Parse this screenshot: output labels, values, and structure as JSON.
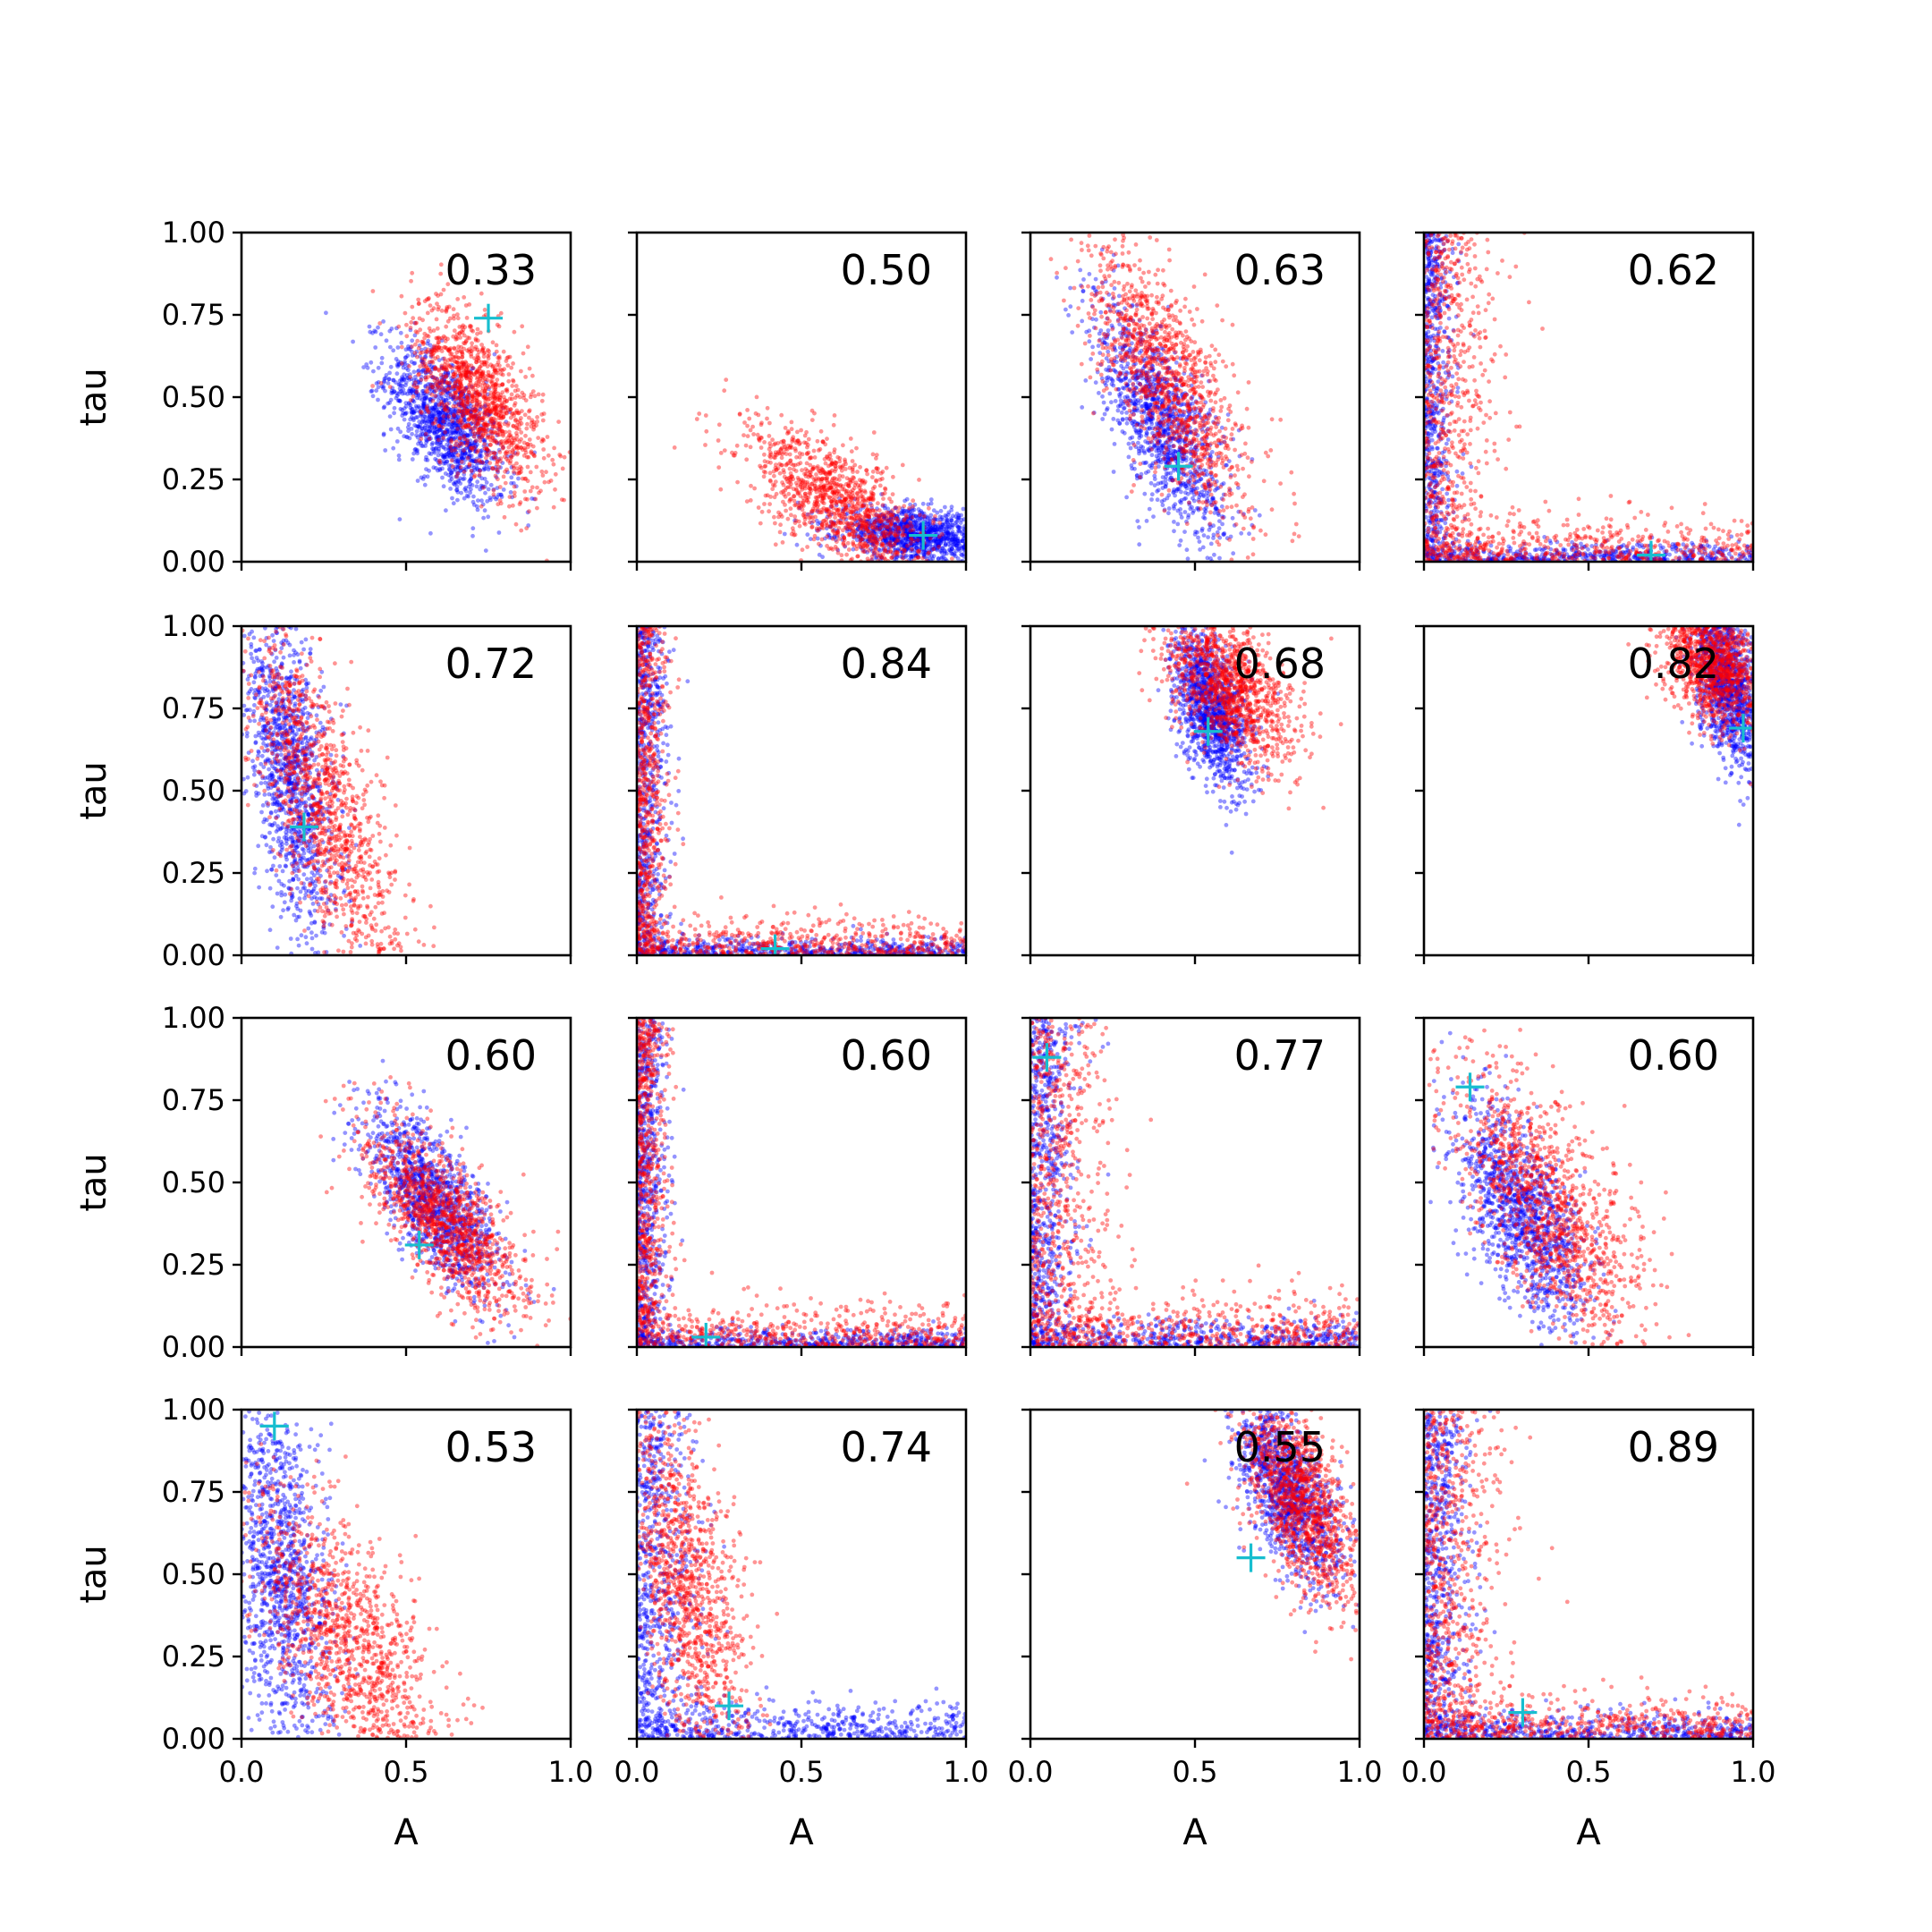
{
  "chart_data": {
    "type": "scatter",
    "layout": "4x4 grid",
    "xlabel": "A",
    "ylabel": "tau",
    "xlim": [
      0,
      1
    ],
    "ylim": [
      0,
      1
    ],
    "x_ticks": [
      "0.0",
      "0.5",
      "1.0"
    ],
    "y_ticks": [
      "0.00",
      "0.25",
      "0.50",
      "0.75",
      "1.00"
    ],
    "series_colors": {
      "blue": "#0000ff",
      "red": "#ff0000",
      "marker": "#17becf"
    },
    "panels": [
      {
        "label": "0.33",
        "marker": [
          0.75,
          0.74
        ],
        "blue": {
          "cx": 0.62,
          "cy": 0.42,
          "sx": 0.09,
          "sy": 0.12,
          "rho": -0.6
        },
        "red": {
          "cx": 0.72,
          "cy": 0.5,
          "sx": 0.1,
          "sy": 0.14,
          "rho": -0.6
        }
      },
      {
        "label": "0.50",
        "marker": [
          0.87,
          0.08
        ],
        "blue": {
          "cx": 0.85,
          "cy": 0.08,
          "sx": 0.12,
          "sy": 0.04,
          "rho": -0.3
        },
        "red": {
          "cx": 0.62,
          "cy": 0.17,
          "sx": 0.14,
          "sy": 0.12,
          "rho": -0.7
        }
      },
      {
        "label": "0.63",
        "marker": [
          0.45,
          0.29
        ],
        "blue": {
          "cx": 0.4,
          "cy": 0.42,
          "sx": 0.1,
          "sy": 0.18,
          "rho": -0.7
        },
        "red": {
          "cx": 0.42,
          "cy": 0.55,
          "sx": 0.12,
          "sy": 0.2,
          "rho": -0.7
        }
      },
      {
        "label": "0.62",
        "marker": [
          0.69,
          0.02
        ],
        "blue": {
          "kind": "L",
          "a0": 0.02,
          "t0": 0.02
        },
        "red": {
          "kind": "L",
          "a0": 0.05,
          "t0": 0.05
        }
      },
      {
        "label": "0.72",
        "marker": [
          0.19,
          0.39
        ],
        "blue": {
          "cx": 0.15,
          "cy": 0.55,
          "sx": 0.07,
          "sy": 0.25,
          "rho": -0.5
        },
        "red": {
          "cx": 0.25,
          "cy": 0.45,
          "sx": 0.12,
          "sy": 0.27,
          "rho": -0.75
        }
      },
      {
        "label": "0.84",
        "marker": [
          0.42,
          0.02
        ],
        "blue": {
          "kind": "L",
          "a0": 0.02,
          "t0": 0.02
        },
        "red": {
          "kind": "L",
          "a0": 0.02,
          "t0": 0.04
        }
      },
      {
        "label": "0.68",
        "marker": [
          0.54,
          0.68
        ],
        "blue": {
          "cx": 0.55,
          "cy": 0.75,
          "sx": 0.06,
          "sy": 0.12,
          "rho": -0.5
        },
        "red": {
          "cx": 0.6,
          "cy": 0.82,
          "sx": 0.1,
          "sy": 0.12,
          "rho": -0.5
        }
      },
      {
        "label": "0.82",
        "marker": [
          0.97,
          0.69
        ],
        "blue": {
          "cx": 0.92,
          "cy": 0.82,
          "sx": 0.05,
          "sy": 0.12,
          "rho": -0.4
        },
        "red": {
          "cx": 0.88,
          "cy": 0.88,
          "sx": 0.08,
          "sy": 0.1,
          "rho": -0.4
        }
      },
      {
        "label": "0.60",
        "marker": [
          0.54,
          0.31
        ],
        "blue": {
          "cx": 0.58,
          "cy": 0.45,
          "sx": 0.1,
          "sy": 0.14,
          "rho": -0.7
        },
        "red": {
          "cx": 0.62,
          "cy": 0.38,
          "sx": 0.12,
          "sy": 0.14,
          "rho": -0.7
        }
      },
      {
        "label": "0.60",
        "marker": [
          0.21,
          0.03
        ],
        "blue": {
          "kind": "L",
          "a0": 0.02,
          "t0": 0.02
        },
        "red": {
          "kind": "L",
          "a0": 0.02,
          "t0": 0.05
        }
      },
      {
        "label": "0.77",
        "marker": [
          0.05,
          0.88
        ],
        "blue": {
          "kind": "L",
          "a0": 0.03,
          "t0": 0.03
        },
        "red": {
          "kind": "L",
          "a0": 0.05,
          "t0": 0.06
        }
      },
      {
        "label": "0.60",
        "marker": [
          0.14,
          0.79
        ],
        "blue": {
          "cx": 0.3,
          "cy": 0.4,
          "sx": 0.1,
          "sy": 0.17,
          "rho": -0.6
        },
        "red": {
          "cx": 0.38,
          "cy": 0.42,
          "sx": 0.15,
          "sy": 0.22,
          "rho": -0.7
        }
      },
      {
        "label": "0.53",
        "marker": [
          0.1,
          0.95
        ],
        "blue": {
          "cx": 0.12,
          "cy": 0.5,
          "sx": 0.08,
          "sy": 0.28,
          "rho": -0.4
        },
        "red": {
          "cx": 0.33,
          "cy": 0.3,
          "sx": 0.14,
          "sy": 0.22,
          "rho": -0.65
        }
      },
      {
        "label": "0.74",
        "marker": [
          0.28,
          0.1
        ],
        "blue": {
          "kind": "L",
          "a0": 0.04,
          "t0": 0.04
        },
        "red": {
          "cx": 0.15,
          "cy": 0.45,
          "sx": 0.1,
          "sy": 0.28,
          "rho": -0.6
        }
      },
      {
        "label": "0.55",
        "marker": [
          0.67,
          0.55
        ],
        "blue": {
          "cx": 0.78,
          "cy": 0.75,
          "sx": 0.08,
          "sy": 0.14,
          "rho": -0.6
        },
        "red": {
          "cx": 0.82,
          "cy": 0.72,
          "sx": 0.09,
          "sy": 0.16,
          "rho": -0.6
        }
      },
      {
        "label": "0.89",
        "marker": [
          0.3,
          0.08
        ],
        "blue": {
          "kind": "L",
          "a0": 0.03,
          "t0": 0.03
        },
        "red": {
          "kind": "L",
          "a0": 0.05,
          "t0": 0.05
        }
      }
    ]
  }
}
